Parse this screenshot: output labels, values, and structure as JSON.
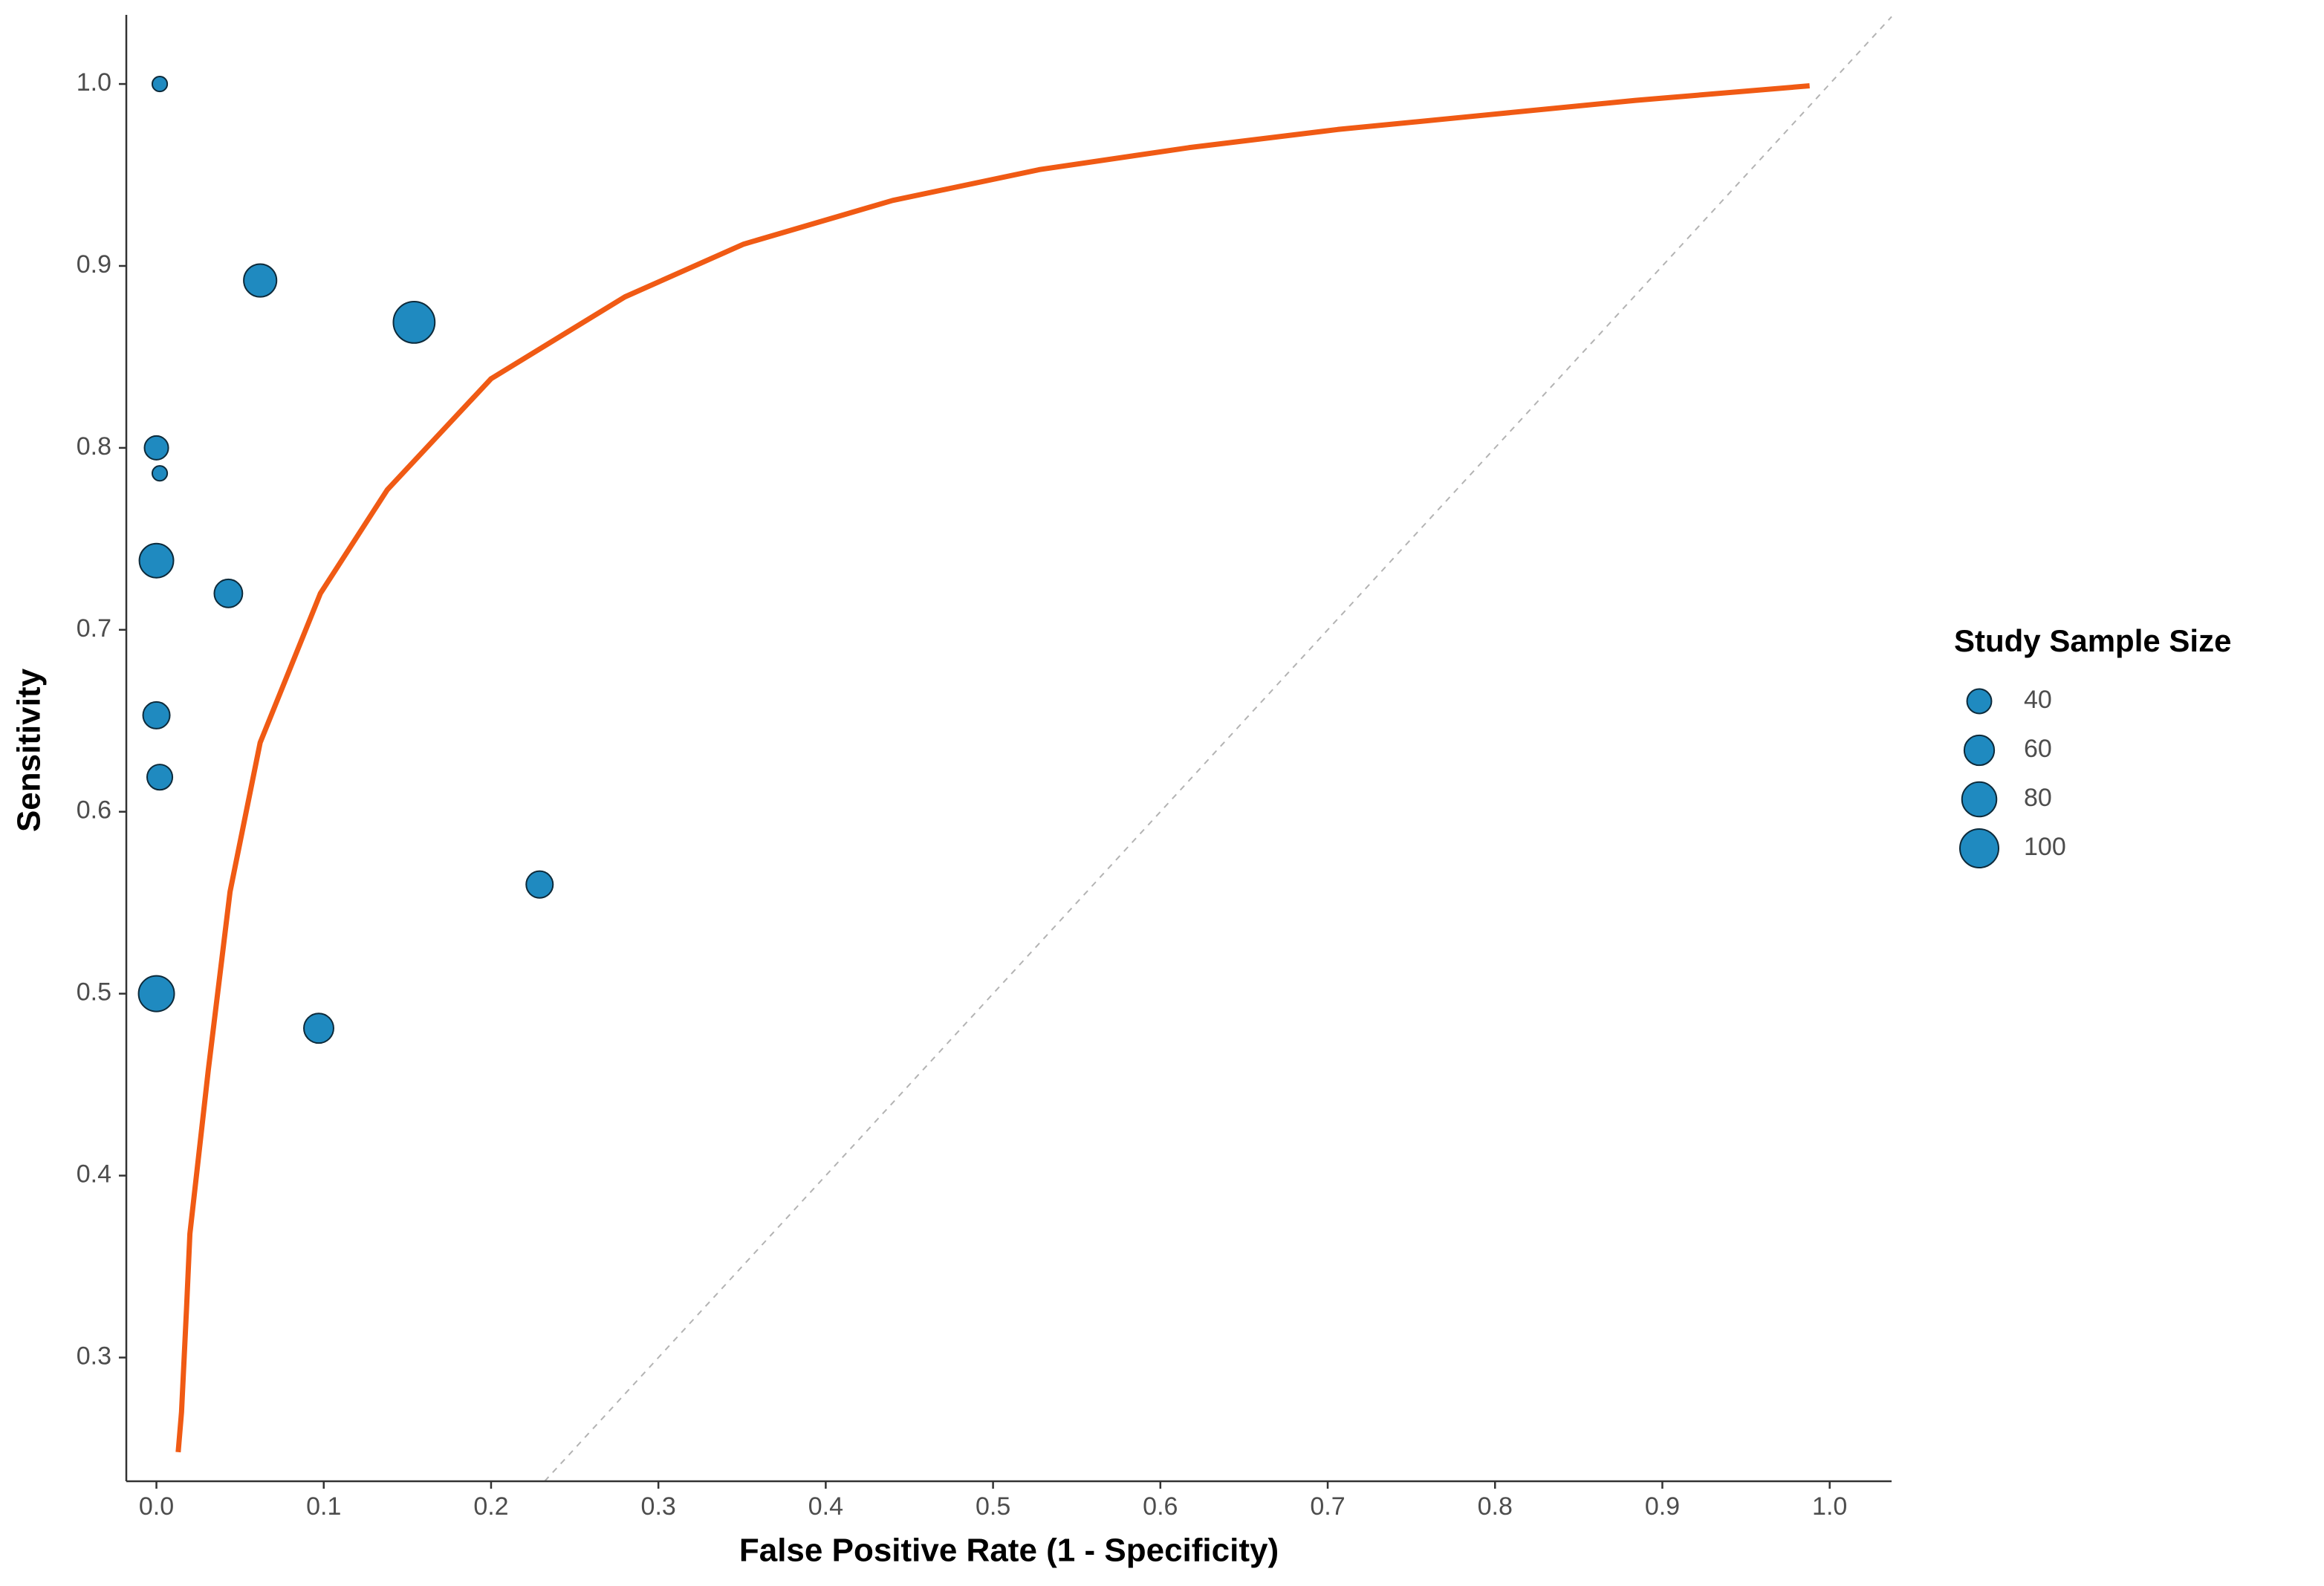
{
  "chart_data": {
    "type": "scatter",
    "x_label": "False Positive Rate (1 - Specificity)",
    "y_label": "Sensitivity",
    "xlim": [
      -0.018,
      1.037
    ],
    "ylim": [
      0.232,
      1.038
    ],
    "xticks": [
      {
        "value": 0,
        "label": "0.0"
      },
      0.1,
      0.2,
      0.3,
      0.4,
      0.5,
      0.6,
      0.7,
      0.8,
      0.9,
      {
        "value": 1,
        "label": "1.0"
      }
    ],
    "yticks": [
      0.3,
      0.4,
      0.5,
      0.6,
      0.7,
      0.8,
      0.9,
      {
        "value": 1,
        "label": "1.0"
      }
    ],
    "grid": false,
    "points": {
      "color": "#1f8ac0",
      "x": [
        0.002,
        0.062,
        0.154,
        0.0,
        0.002,
        0.0,
        0.043,
        0.0,
        0.002,
        0.229,
        0.0,
        0.097
      ],
      "y": [
        1.0,
        0.892,
        0.869,
        0.8,
        0.786,
        0.738,
        0.72,
        0.653,
        0.619,
        0.56,
        0.5,
        0.481
      ],
      "sizes": [
        15,
        72,
        115,
        38,
        15,
        78,
        53,
        48,
        43,
        48,
        85,
        59
      ]
    },
    "curve": {
      "color": "#f05a14",
      "x": [
        0.013,
        0.015,
        0.018,
        0.02,
        0.031,
        0.044,
        0.062,
        0.098,
        0.138,
        0.2,
        0.28,
        0.351,
        0.44,
        0.528,
        0.617,
        0.706,
        0.795,
        0.884,
        0.988
      ],
      "y": [
        0.248,
        0.27,
        0.327,
        0.368,
        0.458,
        0.556,
        0.638,
        0.72,
        0.777,
        0.838,
        0.883,
        0.912,
        0.936,
        0.953,
        0.965,
        0.975,
        0.983,
        0.991,
        0.999
      ]
    },
    "size_legend": {
      "title": "Study Sample Size",
      "values": [
        40,
        60,
        80,
        100
      ]
    }
  }
}
